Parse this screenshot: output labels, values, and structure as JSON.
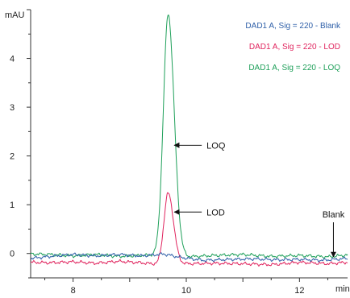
{
  "chart_data": {
    "type": "line",
    "title": "",
    "xlabel": "min",
    "ylabel": "mAU",
    "xlim": [
      7.25,
      12.85
    ],
    "ylim": [
      -0.5,
      5.0
    ],
    "x_ticks": [
      8,
      10,
      12
    ],
    "x_tick_labels": [
      "8",
      "10",
      "12"
    ],
    "y_ticks": [
      0,
      1,
      2,
      3,
      4
    ],
    "y_tick_labels": [
      "0",
      "1",
      "2",
      "3",
      "4"
    ],
    "grid": false,
    "legend_position": "top-right",
    "series": [
      {
        "name": "DAD1 A, Sig = 220 - Blank",
        "color": "#2e5fa8",
        "peak": null,
        "baseline": [
          [
            7.25,
            -0.1
          ],
          [
            7.6,
            -0.06
          ],
          [
            8.0,
            -0.02
          ],
          [
            8.4,
            -0.05
          ],
          [
            8.8,
            -0.02
          ],
          [
            9.2,
            -0.05
          ],
          [
            9.6,
            -0.01
          ],
          [
            9.9,
            -0.08
          ],
          [
            10.3,
            -0.14
          ],
          [
            10.8,
            -0.12
          ],
          [
            11.2,
            -0.11
          ],
          [
            11.6,
            -0.13
          ],
          [
            12.0,
            -0.12
          ],
          [
            12.4,
            -0.14
          ],
          [
            12.85,
            -0.1
          ]
        ]
      },
      {
        "name": "DAD1 A, Sig = 220 - LOD",
        "color": "#e0245e",
        "peak": {
          "center": 9.68,
          "height": 1.45,
          "width": 0.075
        },
        "baseline": [
          [
            7.25,
            -0.18
          ],
          [
            7.6,
            -0.19
          ],
          [
            8.0,
            -0.17
          ],
          [
            8.4,
            -0.2
          ],
          [
            8.8,
            -0.16
          ],
          [
            9.2,
            -0.19
          ],
          [
            9.5,
            -0.22
          ],
          [
            10.0,
            -0.21
          ],
          [
            10.5,
            -0.2
          ],
          [
            11.0,
            -0.21
          ],
          [
            11.5,
            -0.23
          ],
          [
            12.0,
            -0.18
          ],
          [
            12.5,
            -0.21
          ],
          [
            12.85,
            -0.18
          ]
        ]
      },
      {
        "name": "DAD1 A, Sig = 220 - LOQ",
        "color": "#1fa05a",
        "peak": {
          "center": 9.68,
          "height": 4.95,
          "width": 0.085
        },
        "baseline": [
          [
            7.25,
            -0.01
          ],
          [
            7.6,
            -0.02
          ],
          [
            8.0,
            -0.05
          ],
          [
            8.4,
            -0.02
          ],
          [
            8.8,
            -0.06
          ],
          [
            9.2,
            -0.04
          ],
          [
            9.5,
            -0.03
          ],
          [
            10.0,
            -0.07
          ],
          [
            10.5,
            -0.04
          ],
          [
            11.0,
            -0.02
          ],
          [
            11.5,
            -0.06
          ],
          [
            12.0,
            -0.04
          ],
          [
            12.5,
            -0.07
          ],
          [
            12.85,
            -0.03
          ]
        ]
      }
    ],
    "annotations": [
      {
        "text": "LOQ",
        "arrow_to": [
          9.76,
          2.22
        ]
      },
      {
        "text": "LOD",
        "arrow_to": [
          9.76,
          0.85
        ]
      },
      {
        "text": "Blank",
        "arrow_to": [
          12.6,
          -0.12
        ]
      }
    ]
  }
}
